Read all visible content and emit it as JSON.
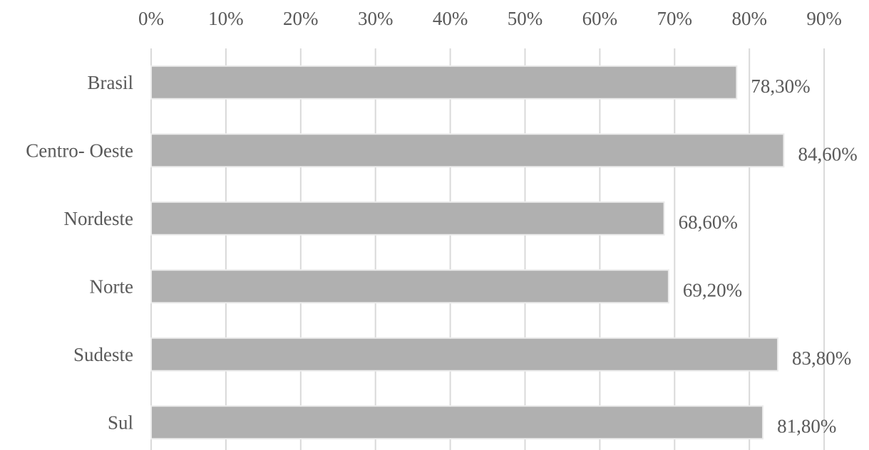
{
  "chart_data": {
    "type": "bar",
    "orientation": "horizontal",
    "categories": [
      "Brasil",
      "Centro- Oeste",
      "Nordeste",
      "Norte",
      "Sudeste",
      "Sul"
    ],
    "values": [
      78.3,
      84.6,
      68.6,
      69.2,
      83.8,
      81.8
    ],
    "data_labels": [
      "78,30%",
      "84,60%",
      "68,60%",
      "69,20%",
      "83,80%",
      "81,80%"
    ],
    "x_ticks": [
      0,
      10,
      20,
      30,
      40,
      50,
      60,
      70,
      80,
      90
    ],
    "x_tick_labels": [
      "0%",
      "10%",
      "20%",
      "30%",
      "40%",
      "50%",
      "60%",
      "70%",
      "80%",
      "90%"
    ],
    "xlim": [
      0,
      90
    ],
    "x_axis_position": "top",
    "grid": true,
    "legend": "none",
    "colors": {
      "bar": "#b0b0b0",
      "text": "#595959",
      "grid": "#d9d9d9"
    }
  }
}
